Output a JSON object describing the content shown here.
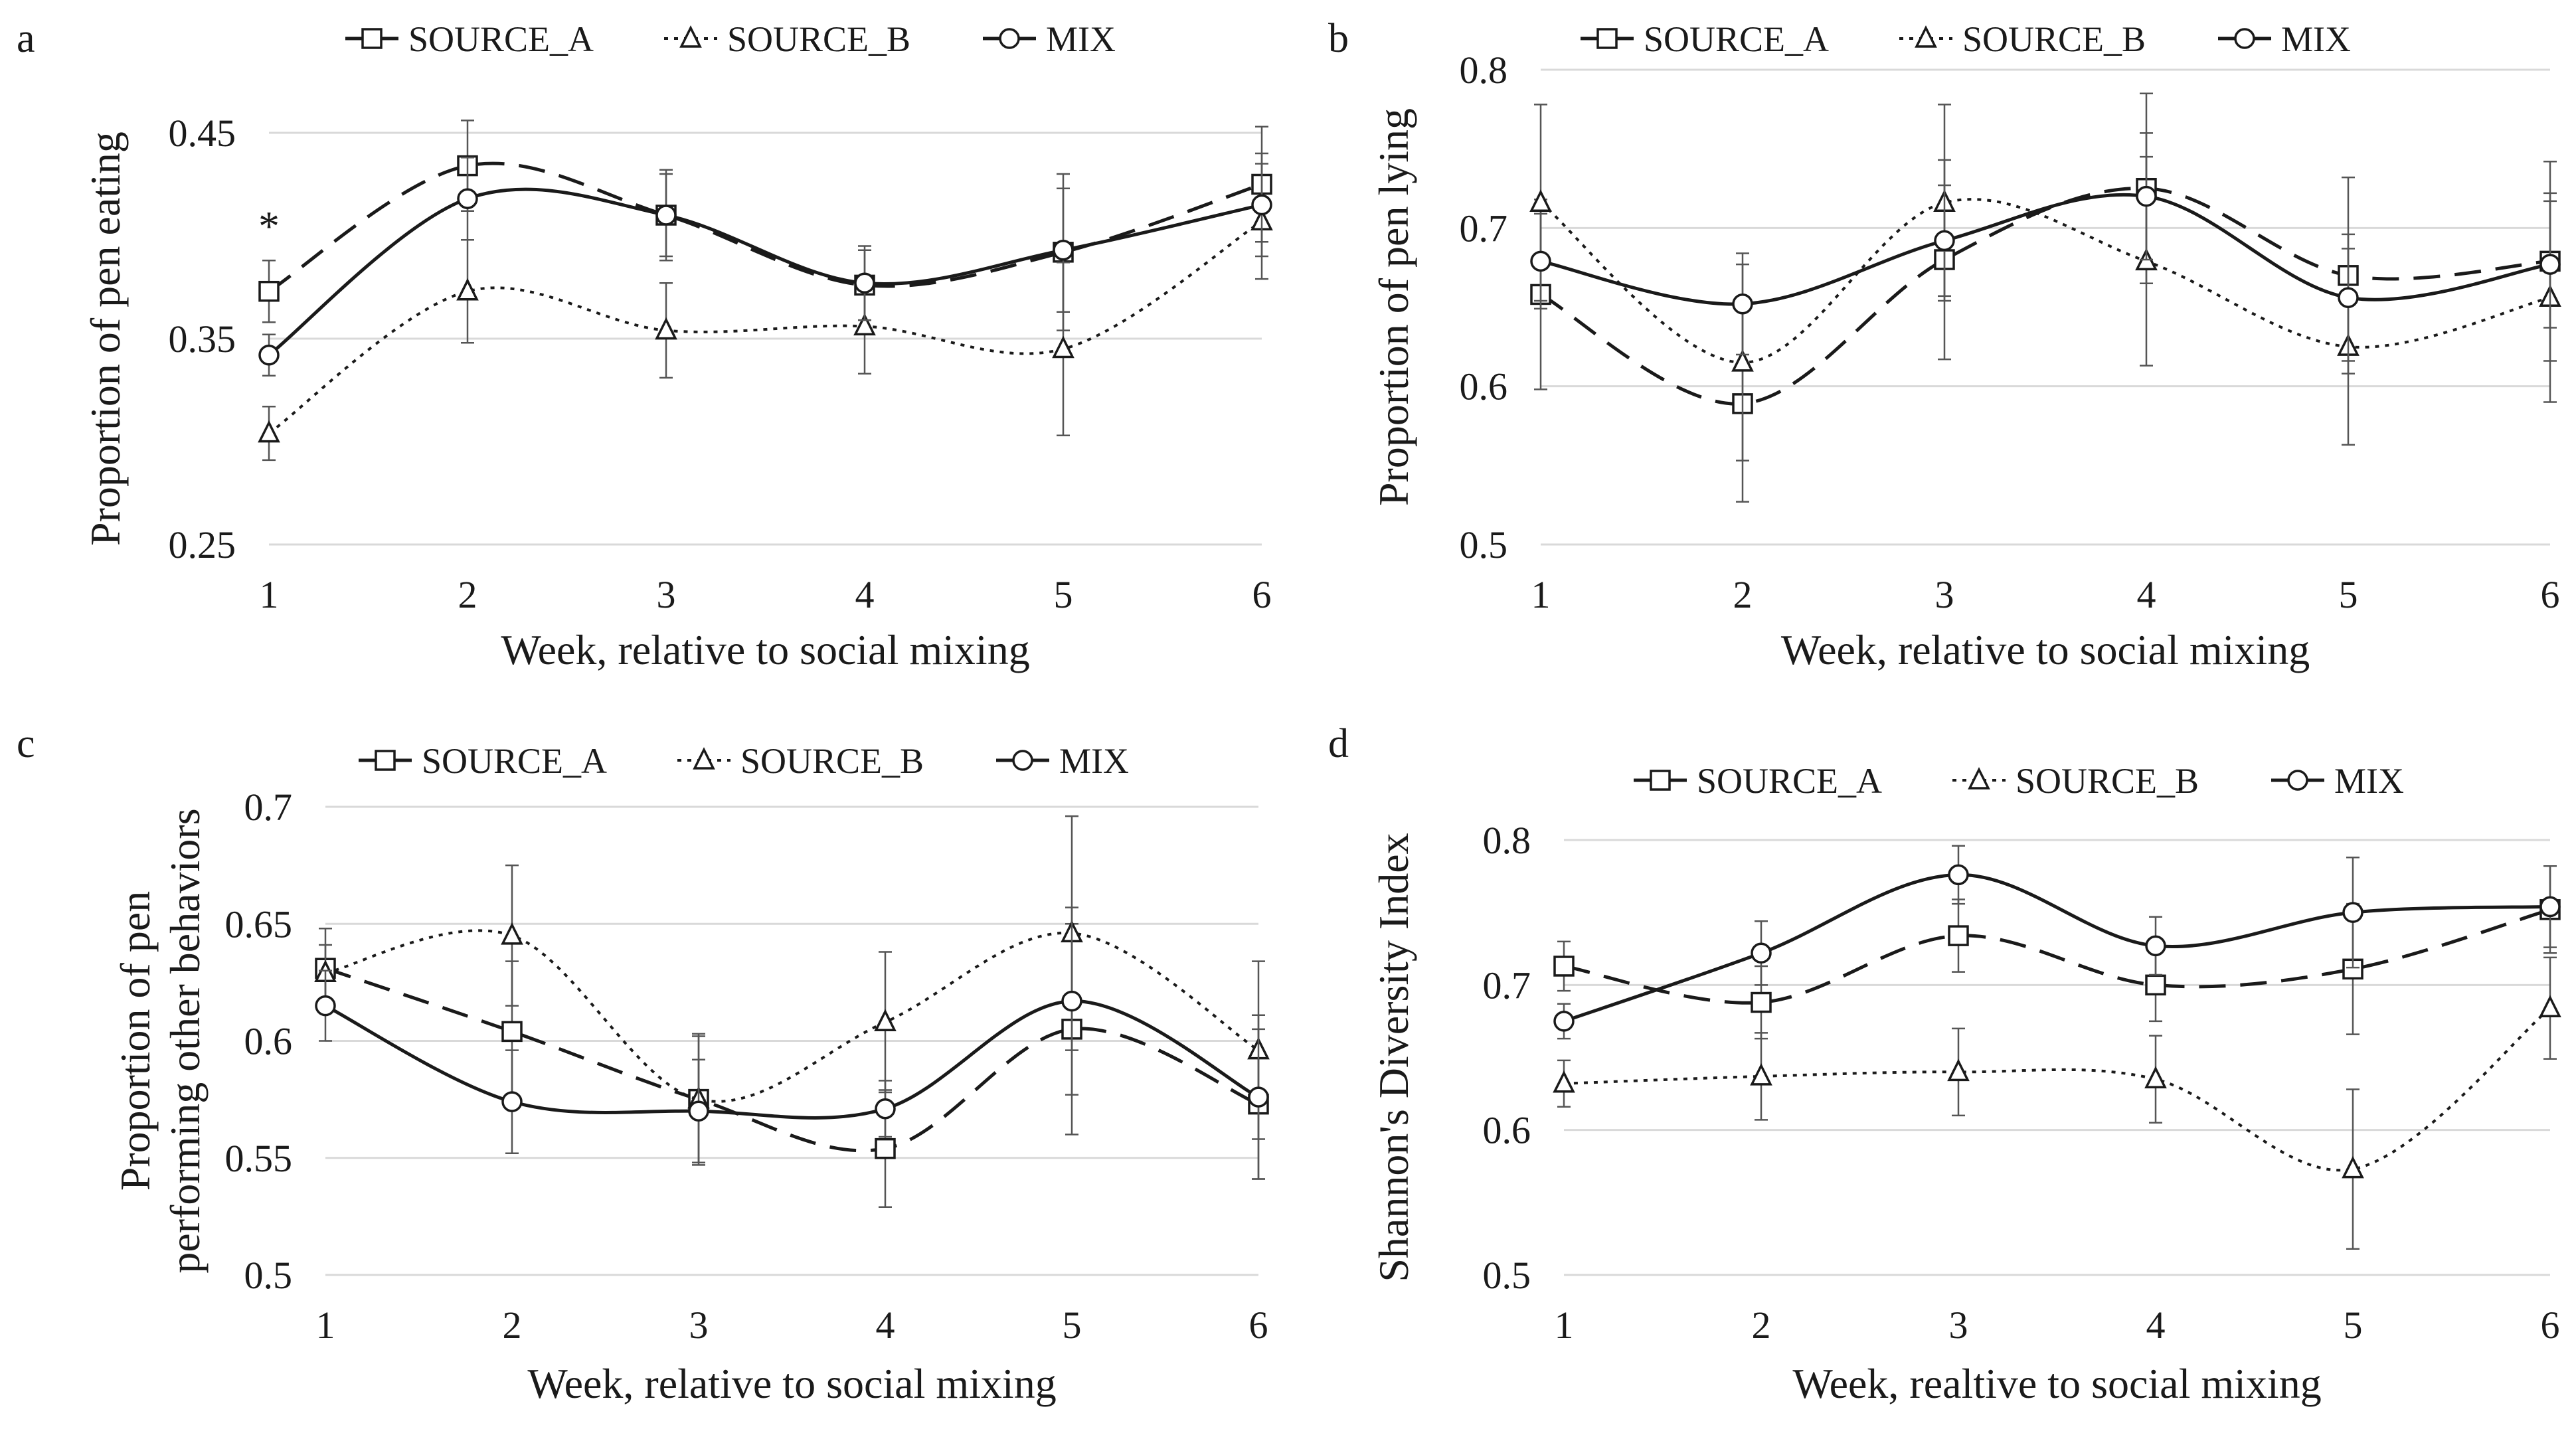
{
  "chart_data": [
    {
      "panel": "a",
      "type": "line",
      "x": [
        1,
        2,
        3,
        4,
        5,
        6
      ],
      "xlabel": "Week, relative to social mixing",
      "ylabel": "Proportion of pen eating",
      "ylim": [
        0.25,
        0.45
      ],
      "yticks": [
        "0.25",
        "0.35",
        "0.45"
      ],
      "legend_position": "top",
      "annotations": [
        {
          "text": "*",
          "x": 1
        }
      ],
      "series": [
        {
          "name": "SOURCE_A",
          "style": "dashed",
          "marker": "square",
          "values": [
            0.373,
            0.434,
            0.41,
            0.376,
            0.392,
            0.425
          ],
          "errors": [
            0.015,
            0.022,
            0.02,
            0.017,
            0.038,
            0.028
          ]
        },
        {
          "name": "SOURCE_B",
          "style": "dotted",
          "marker": "triangle",
          "values": [
            0.304,
            0.373,
            0.354,
            0.356,
            0.345,
            0.407
          ],
          "errors": [
            0.013,
            0.025,
            0.023,
            0.023,
            0.042,
            0.028
          ]
        },
        {
          "name": "MIX",
          "style": "solid",
          "marker": "circle",
          "values": [
            0.342,
            0.418,
            0.41,
            0.377,
            0.393,
            0.415
          ],
          "errors": [
            0.01,
            0.02,
            0.022,
            0.018,
            0.03,
            0.025
          ]
        }
      ]
    },
    {
      "panel": "b",
      "type": "line",
      "x": [
        1,
        2,
        3,
        4,
        5,
        6
      ],
      "xlabel": "Week, relative to social mixing",
      "ylabel": "Proportion of pen lying",
      "ylim": [
        0.5,
        0.8
      ],
      "yticks": [
        "0.5",
        "0.6",
        "0.7",
        "0.8"
      ],
      "legend_position": "top",
      "series": [
        {
          "name": "SOURCE_A",
          "style": "dashed",
          "marker": "square",
          "values": [
            0.658,
            0.589,
            0.68,
            0.725,
            0.67,
            0.679
          ],
          "errors": [
            0.06,
            0.062,
            0.063,
            0.06,
            0.062,
            0.063
          ]
        },
        {
          "name": "SOURCE_B",
          "style": "dotted",
          "marker": "triangle",
          "values": [
            0.716,
            0.615,
            0.716,
            0.679,
            0.625,
            0.656
          ],
          "errors": [
            0.062,
            0.062,
            0.062,
            0.066,
            0.062,
            0.066
          ]
        },
        {
          "name": "MIX",
          "style": "solid",
          "marker": "circle",
          "values": [
            0.679,
            0.652,
            0.692,
            0.72,
            0.656,
            0.677
          ],
          "errors": [
            0.03,
            0.032,
            0.035,
            0.04,
            0.04,
            0.04
          ]
        }
      ]
    },
    {
      "panel": "c",
      "type": "line",
      "x": [
        1,
        2,
        3,
        4,
        5,
        6
      ],
      "xlabel": "Week, relative to social mixing",
      "ylabel": "Proportion of pen performing other behaviors",
      "ylabel_lines": [
        "Proportion of pen",
        "performing other behaviors"
      ],
      "ylim": [
        0.5,
        0.7
      ],
      "yticks": [
        "0.5",
        "0.55",
        "0.6",
        "0.65",
        "0.7"
      ],
      "legend_position": "top",
      "series": [
        {
          "name": "SOURCE_A",
          "style": "dashed",
          "marker": "square",
          "values": [
            0.631,
            0.604,
            0.575,
            0.554,
            0.605,
            0.573
          ],
          "errors": [
            0.017,
            0.03,
            0.028,
            0.025,
            0.045,
            0.032
          ]
        },
        {
          "name": "SOURCE_B",
          "style": "dotted",
          "marker": "triangle",
          "values": [
            0.629,
            0.645,
            0.575,
            0.608,
            0.646,
            0.596
          ],
          "errors": [
            0.012,
            0.03,
            0.027,
            0.03,
            0.05,
            0.038
          ]
        },
        {
          "name": "MIX",
          "style": "solid",
          "marker": "circle",
          "values": [
            0.615,
            0.574,
            0.57,
            0.571,
            0.617,
            0.576
          ],
          "errors": [
            0.015,
            0.022,
            0.022,
            0.012,
            0.04,
            0.035
          ]
        }
      ]
    },
    {
      "panel": "d",
      "type": "line",
      "x": [
        1,
        2,
        3,
        4,
        5,
        6
      ],
      "xlabel": "Week, realtive to social mixing",
      "ylabel": "Shannon's Diversity Index",
      "ylim": [
        0.5,
        0.8
      ],
      "yticks": [
        "0.5",
        "0.6",
        "0.7",
        "0.8"
      ],
      "legend_position": "top",
      "series": [
        {
          "name": "SOURCE_A",
          "style": "dashed",
          "marker": "square",
          "values": [
            0.713,
            0.688,
            0.734,
            0.7,
            0.711,
            0.752
          ],
          "errors": [
            0.017,
            0.025,
            0.025,
            0.025,
            0.045,
            0.03
          ]
        },
        {
          "name": "SOURCE_B",
          "style": "dotted",
          "marker": "triangle",
          "values": [
            0.632,
            0.637,
            0.64,
            0.635,
            0.573,
            0.684
          ],
          "errors": [
            0.016,
            0.03,
            0.03,
            0.03,
            0.055,
            0.035
          ]
        },
        {
          "name": "MIX",
          "style": "solid",
          "marker": "circle",
          "values": [
            0.675,
            0.722,
            0.776,
            0.727,
            0.75,
            0.754
          ],
          "errors": [
            0.012,
            0.022,
            0.02,
            0.02,
            0.038,
            0.028
          ]
        }
      ]
    }
  ]
}
